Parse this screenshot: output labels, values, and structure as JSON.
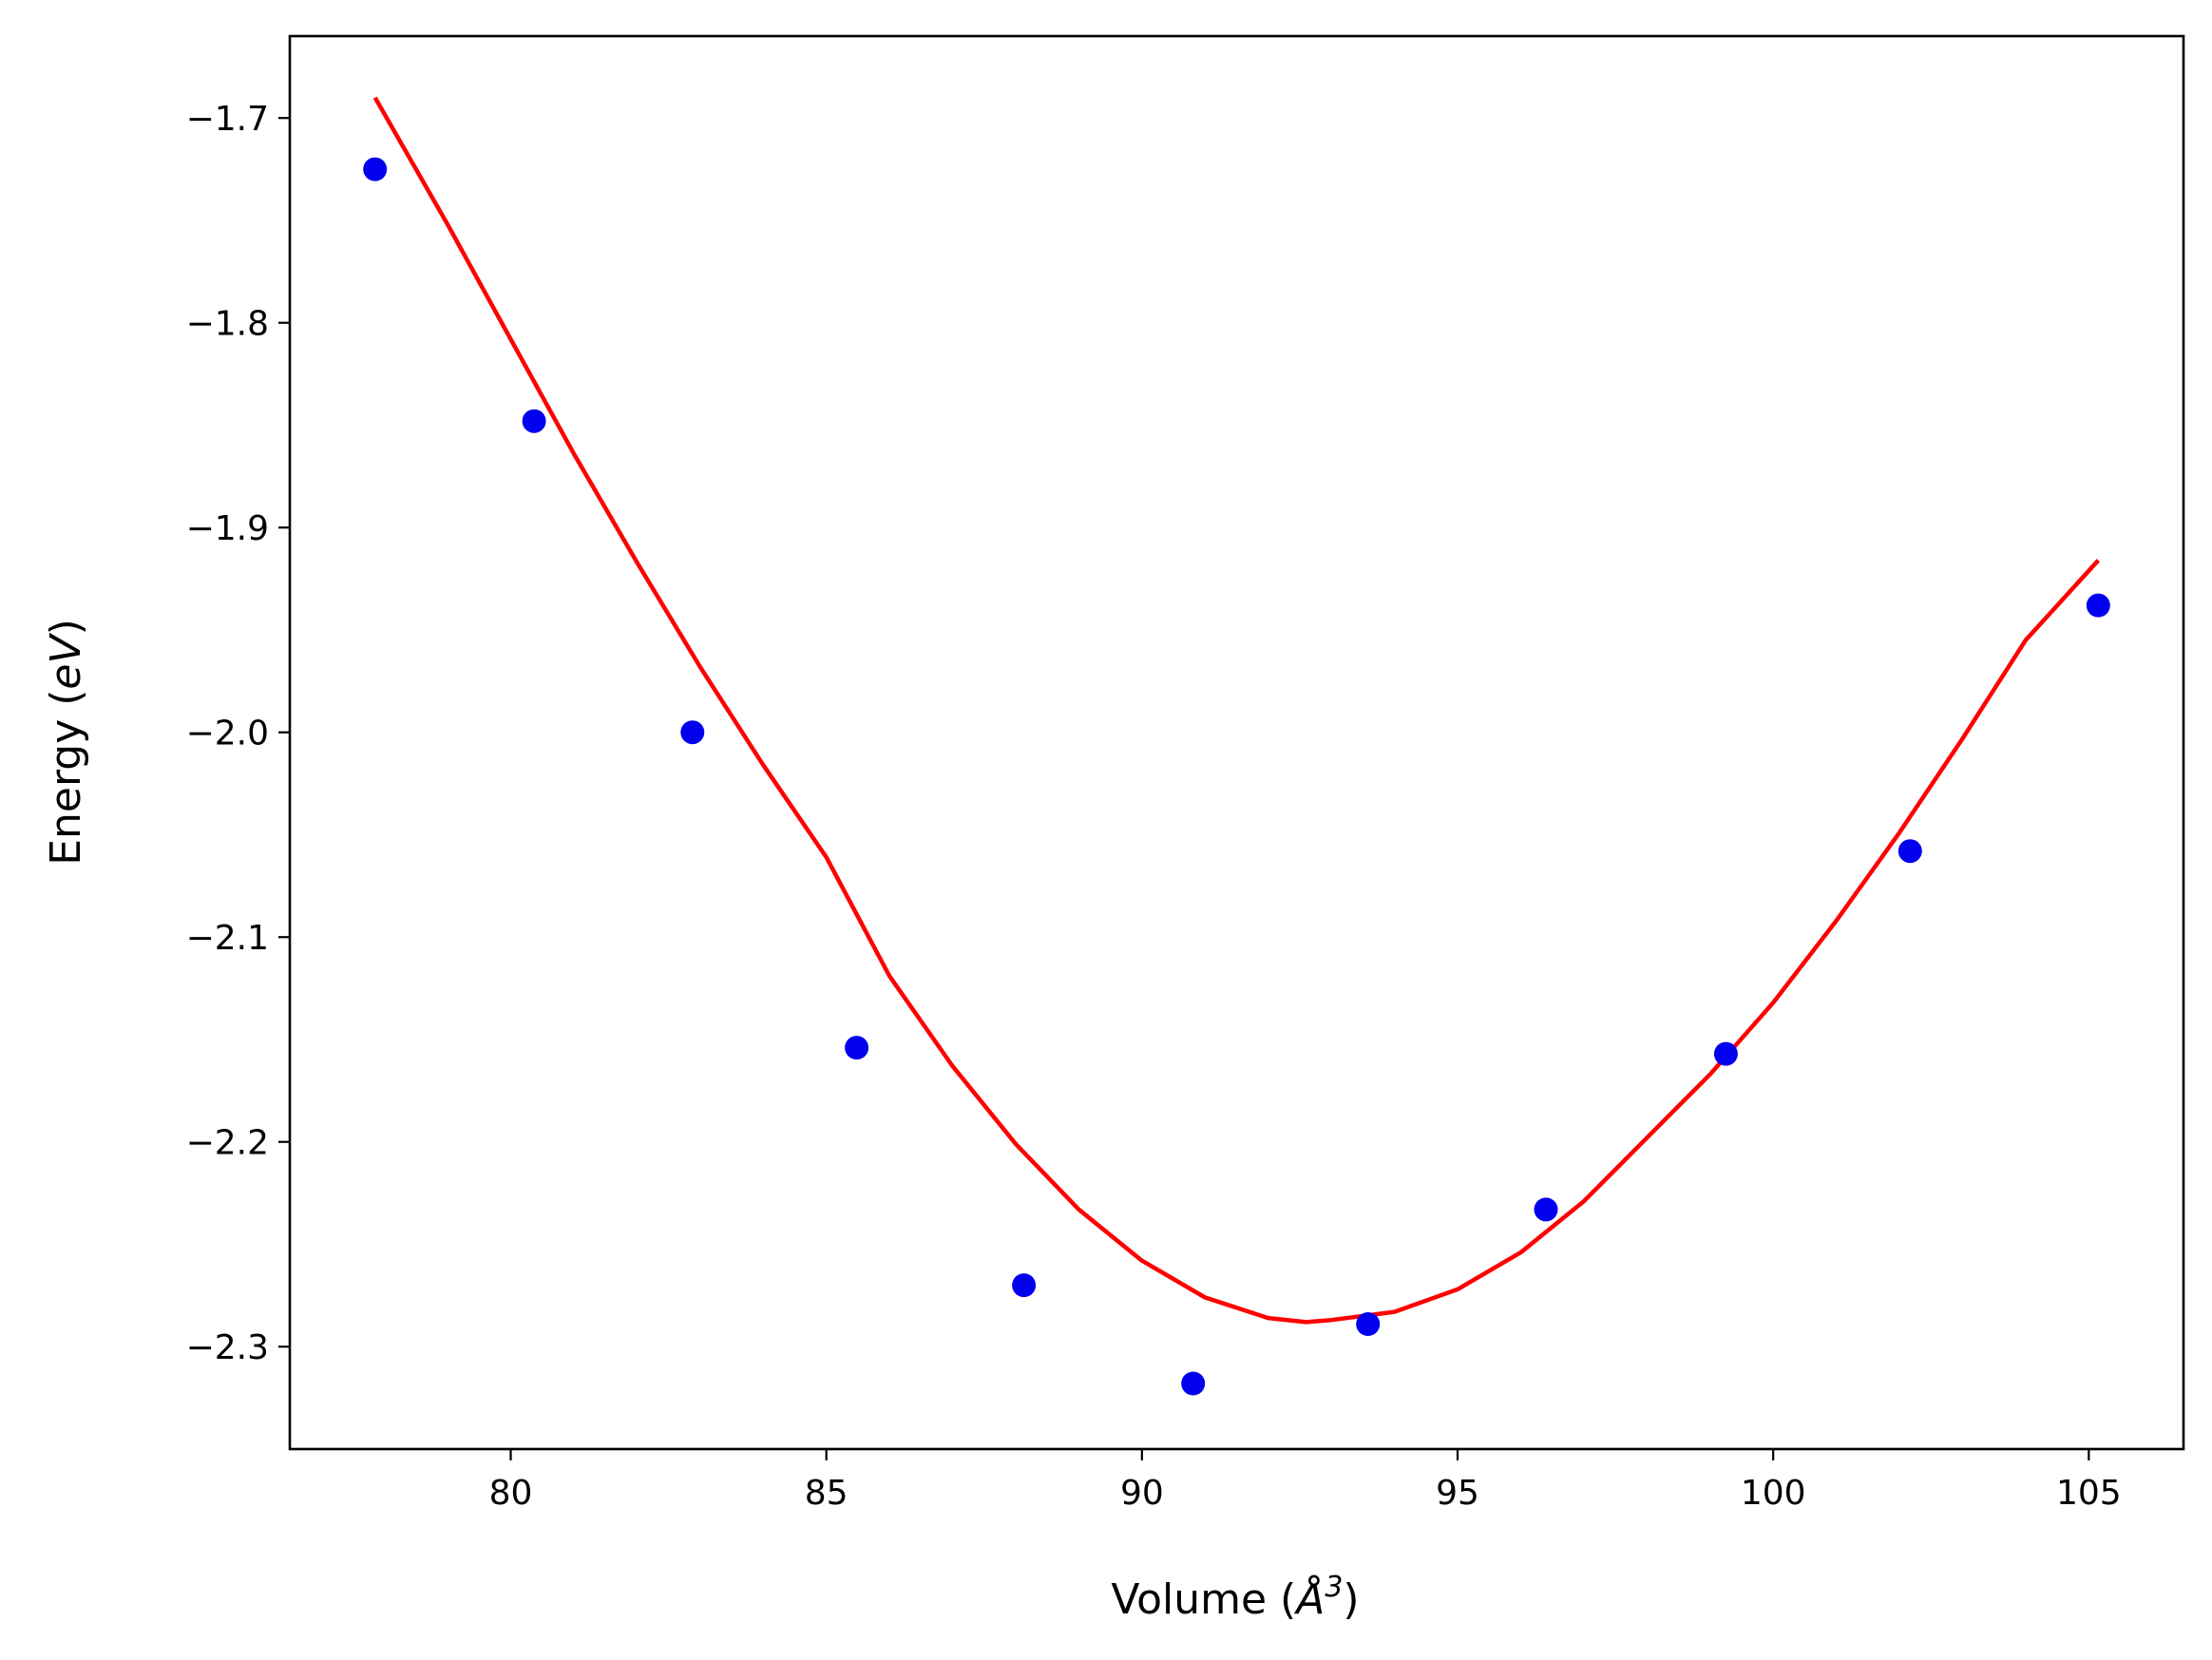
{
  "chart_data": {
    "type": "scatter",
    "xlabel_main": "Volume (",
    "xlabel_symbol": "Å",
    "xlabel_sup": "3",
    "xlabel_end": ")",
    "ylabel_main": "Energy (",
    "ylabel_unit": "eV",
    "ylabel_end": ")",
    "xlim": [
      76.5,
      106.5
    ],
    "ylim": [
      -2.35,
      -1.66
    ],
    "x_ticks": [
      80,
      85,
      90,
      95,
      100,
      105
    ],
    "x_tick_labels": [
      "80",
      "85",
      "90",
      "95",
      "100",
      "105"
    ],
    "y_ticks": [
      -1.7,
      -1.8,
      -1.9,
      -2.0,
      -2.1,
      -2.2,
      -2.3
    ],
    "y_tick_labels": [
      "−1.7",
      "−1.8",
      "−1.9",
      "−2.0",
      "−2.1",
      "−2.2",
      "−2.3"
    ],
    "grid": false,
    "series": [
      {
        "kind": "points",
        "color": "#0000ee",
        "x": [
          77.85,
          80.37,
          82.88,
          85.48,
          88.13,
          90.81,
          93.58,
          96.4,
          99.25,
          102.17,
          105.15
        ],
        "y": [
          -1.725,
          -1.848,
          -2.0,
          -2.154,
          -2.27,
          -2.318,
          -2.289,
          -2.233,
          -2.157,
          -2.058,
          -1.938
        ]
      },
      {
        "kind": "fit-curve",
        "color": "#ff0000",
        "x": [
          77.85,
          79.0,
          80.0,
          81.0,
          82.0,
          83.0,
          84.0,
          85.0,
          86.0,
          87.0,
          88.0,
          89.0,
          90.0,
          91.0,
          92.0,
          92.6,
          93.0,
          94.0,
          95.0,
          96.0,
          97.0,
          98.0,
          99.0,
          100.0,
          101.0,
          102.0,
          103.0,
          104.0,
          105.15
        ],
        "y": [
          -1.69,
          -1.752,
          -1.808,
          -1.864,
          -1.917,
          -1.968,
          -2.016,
          -2.061,
          -2.119,
          -2.163,
          -2.201,
          -2.233,
          -2.258,
          -2.276,
          -2.286,
          -2.288,
          -2.287,
          -2.283,
          -2.272,
          -2.254,
          -2.229,
          -2.198,
          -2.167,
          -2.132,
          -2.092,
          -2.049,
          -2.003,
          -1.955,
          -1.916
        ]
      }
    ]
  }
}
